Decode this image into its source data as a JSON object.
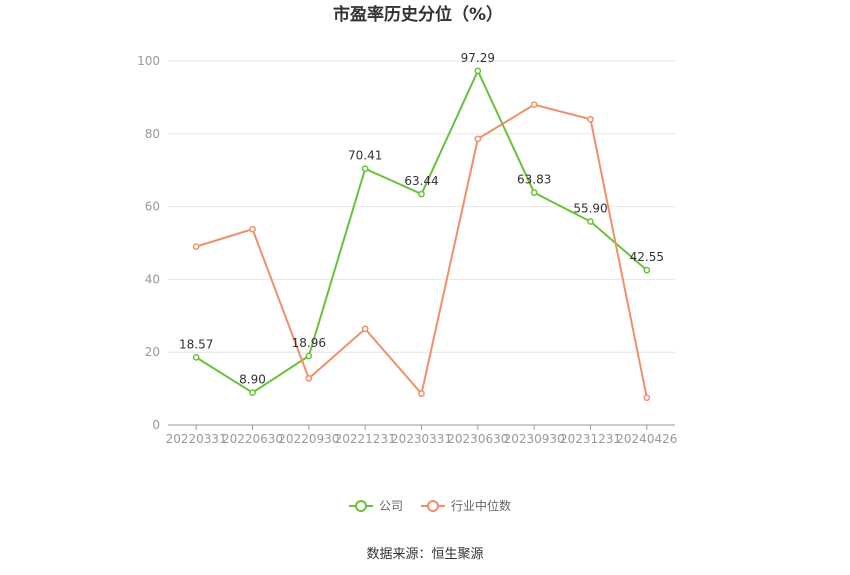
{
  "chart_data": {
    "type": "line",
    "title": "市盈率历史分位（%）",
    "categories": [
      "20220331",
      "20220630",
      "20220930",
      "20221231",
      "20230331",
      "20230630",
      "20230930",
      "20231231",
      "20240426"
    ],
    "ylim": [
      0,
      100
    ],
    "yticks": [
      0,
      20,
      40,
      60,
      80,
      100
    ],
    "grid": true,
    "legend_position": "bottom-center",
    "series": [
      {
        "name": "公司",
        "color": "#67c23a",
        "values": [
          18.57,
          8.9,
          18.96,
          70.41,
          63.44,
          97.29,
          63.83,
          55.9,
          42.55
        ],
        "labels": [
          "18.57",
          "8.90",
          "18.96",
          "70.41",
          "63.44",
          "97.29",
          "63.83",
          "55.90",
          "42.55"
        ]
      },
      {
        "name": "行业中位数",
        "color": "#f0906a",
        "values": [
          49.0,
          53.8,
          12.8,
          26.4,
          8.6,
          78.6,
          88.0,
          84.0,
          7.5
        ]
      }
    ]
  },
  "source": "数据来源：恒生聚源"
}
